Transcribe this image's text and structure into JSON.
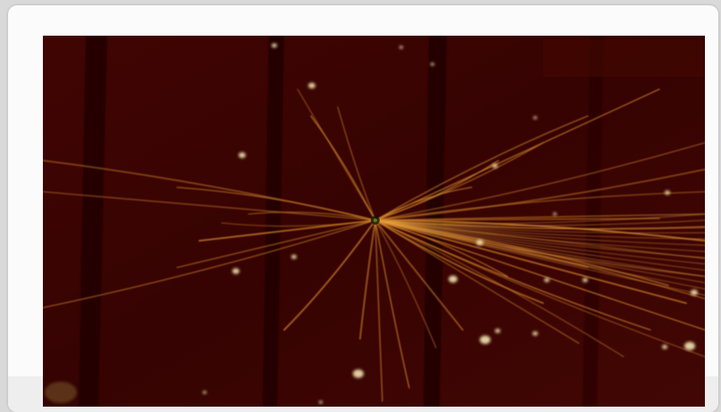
{
  "image": {
    "subject": "particle-collision-event-display",
    "background_color": "#3a0402",
    "track_color": "#d98a2a",
    "hit_color": "#f3e6b0"
  },
  "overlay": {
    "lines": []
  }
}
